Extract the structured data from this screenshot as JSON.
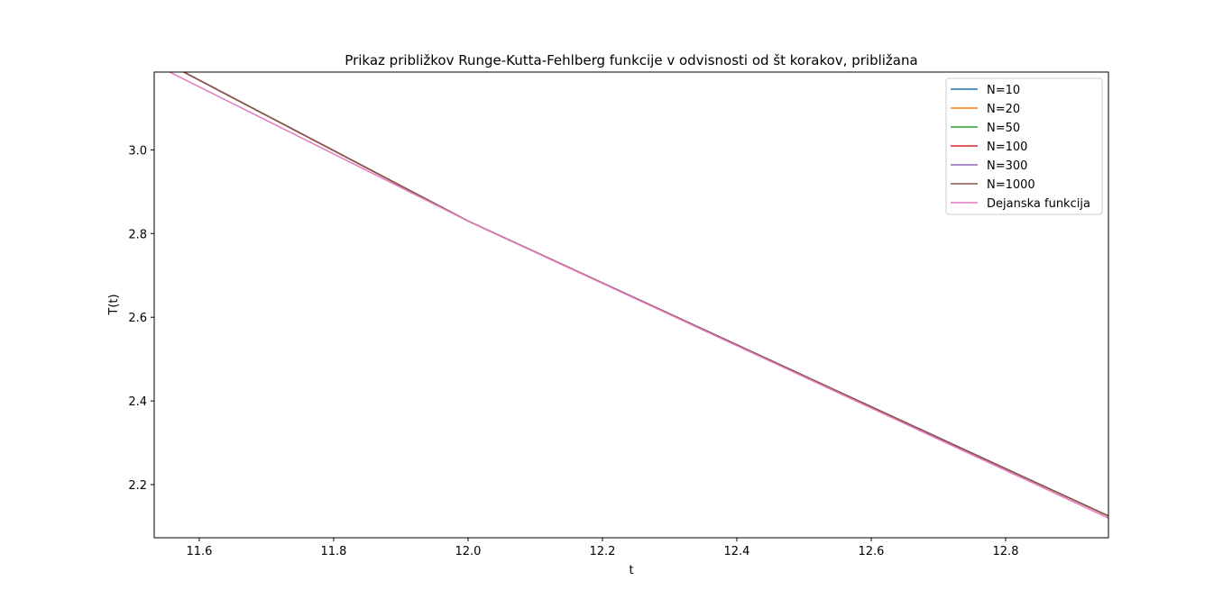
{
  "chart_data": {
    "type": "line",
    "title": "Prikaz približkov Runge-Kutta-Fehlberg funkcije v odvisnosti od št korakov, približana",
    "xlabel": "t",
    "ylabel": "T(t)",
    "xlim": [
      11.533,
      12.953
    ],
    "ylim": [
      2.073,
      3.186
    ],
    "xticks": [
      11.6,
      11.8,
      12.0,
      12.2,
      12.4,
      12.6,
      12.8
    ],
    "xtick_labels": [
      "11.6",
      "11.8",
      "12.0",
      "12.2",
      "12.4",
      "12.6",
      "12.8"
    ],
    "yticks": [
      2.2,
      2.4,
      2.6,
      2.8,
      3.0
    ],
    "ytick_labels": [
      "2.2",
      "2.4",
      "2.6",
      "2.8",
      "3.0"
    ],
    "grid": false,
    "legend_position": "upper right",
    "series": [
      {
        "name": "N=10",
        "color": "#1f77b4",
        "x": [
          11.577,
          12.0,
          12.953
        ],
        "y": [
          3.186,
          2.83,
          2.125
        ]
      },
      {
        "name": "N=20",
        "color": "#ff7f0e",
        "x": [
          11.577,
          12.0,
          12.953
        ],
        "y": [
          3.186,
          2.83,
          2.125
        ]
      },
      {
        "name": "N=50",
        "color": "#2ca02c",
        "x": [
          11.577,
          12.0,
          12.953
        ],
        "y": [
          3.186,
          2.83,
          2.125
        ]
      },
      {
        "name": "N=100",
        "color": "#d62728",
        "x": [
          11.577,
          12.0,
          12.953
        ],
        "y": [
          3.186,
          2.83,
          2.125
        ]
      },
      {
        "name": "N=300",
        "color": "#9467bd",
        "x": [
          11.577,
          12.0,
          12.953
        ],
        "y": [
          3.186,
          2.83,
          2.125
        ]
      },
      {
        "name": "N=1000",
        "color": "#8c564b",
        "x": [
          11.577,
          12.0,
          12.953
        ],
        "y": [
          3.186,
          2.83,
          2.125
        ]
      },
      {
        "name": "Dejanska funkcija",
        "color": "#e377c2",
        "x": [
          11.556,
          12.0,
          12.953
        ],
        "y": [
          3.186,
          2.83,
          2.12
        ]
      }
    ]
  }
}
